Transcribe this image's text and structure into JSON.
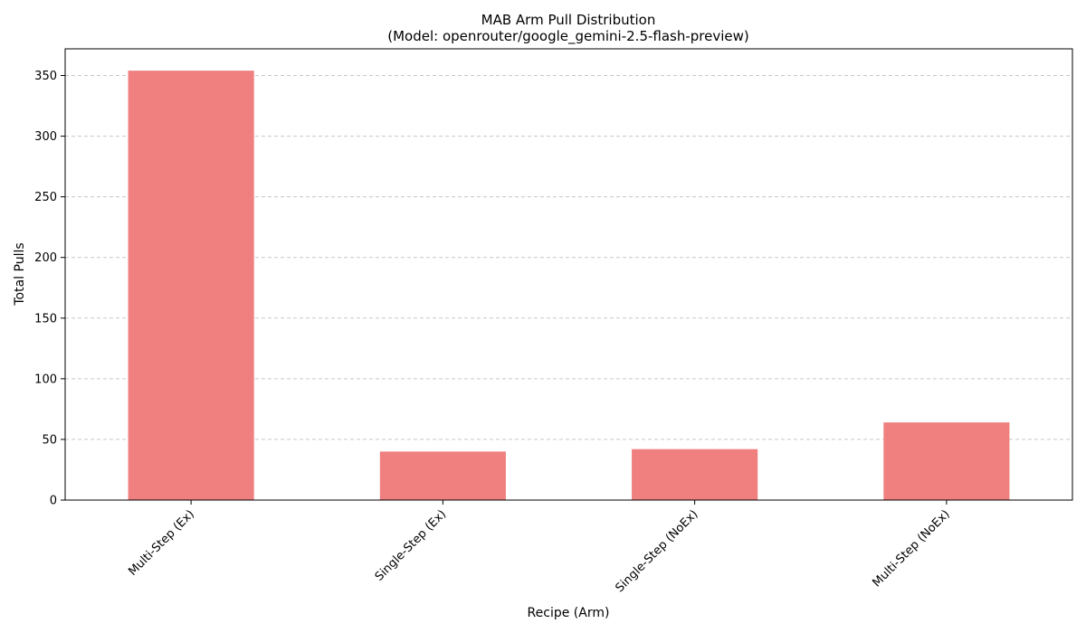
{
  "chart_data": {
    "type": "bar",
    "title": "MAB Arm Pull Distribution",
    "subtitle": "(Model: openrouter/google_gemini-2.5-flash-preview)",
    "xlabel": "Recipe (Arm)",
    "ylabel": "Total Pulls",
    "categories": [
      "Multi-Step (Ex)",
      "Single-Step (Ex)",
      "Single-Step (NoEx)",
      "Multi-Step (NoEx)"
    ],
    "values": [
      354,
      40,
      42,
      64
    ],
    "ylim": [
      0,
      372
    ],
    "yticks": [
      0,
      50,
      100,
      150,
      200,
      250,
      300,
      350
    ],
    "grid": "y-dashed",
    "bar_color": "#f08080",
    "grid_color": "#c8c8c8"
  }
}
